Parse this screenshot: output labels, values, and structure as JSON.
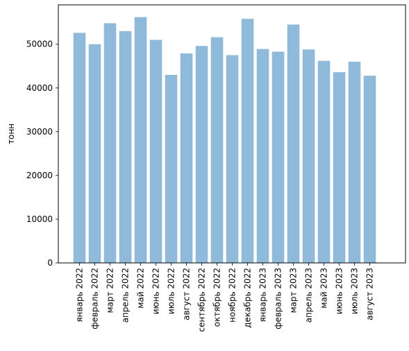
{
  "chart_data": {
    "type": "bar",
    "title": "",
    "xlabel": "",
    "ylabel": "тонн",
    "ylim": [
      0,
      59000
    ],
    "yticks": [
      0,
      10000,
      20000,
      30000,
      40000,
      50000
    ],
    "grid": false,
    "bar_color": "#8fbad9",
    "categories": [
      "январь 2022",
      "февраль 2022",
      "март 2022",
      "апрель 2022",
      "май 2022",
      "июнь 2022",
      "июль 2022",
      "август 2022",
      "сентябрь 2022",
      "октябрь 2022",
      "ноябрь 2022",
      "декабрь 2022",
      "январь 2023",
      "февраль 2023",
      "март 2023",
      "апрель 2023",
      "май 2023",
      "июнь 2023",
      "июль 2023",
      "август 2023"
    ],
    "values": [
      52600,
      50000,
      54800,
      53000,
      56200,
      51000,
      43000,
      47900,
      49600,
      51600,
      47500,
      55800,
      48900,
      48300,
      54500,
      48800,
      46200,
      43600,
      46000,
      42800
    ]
  }
}
